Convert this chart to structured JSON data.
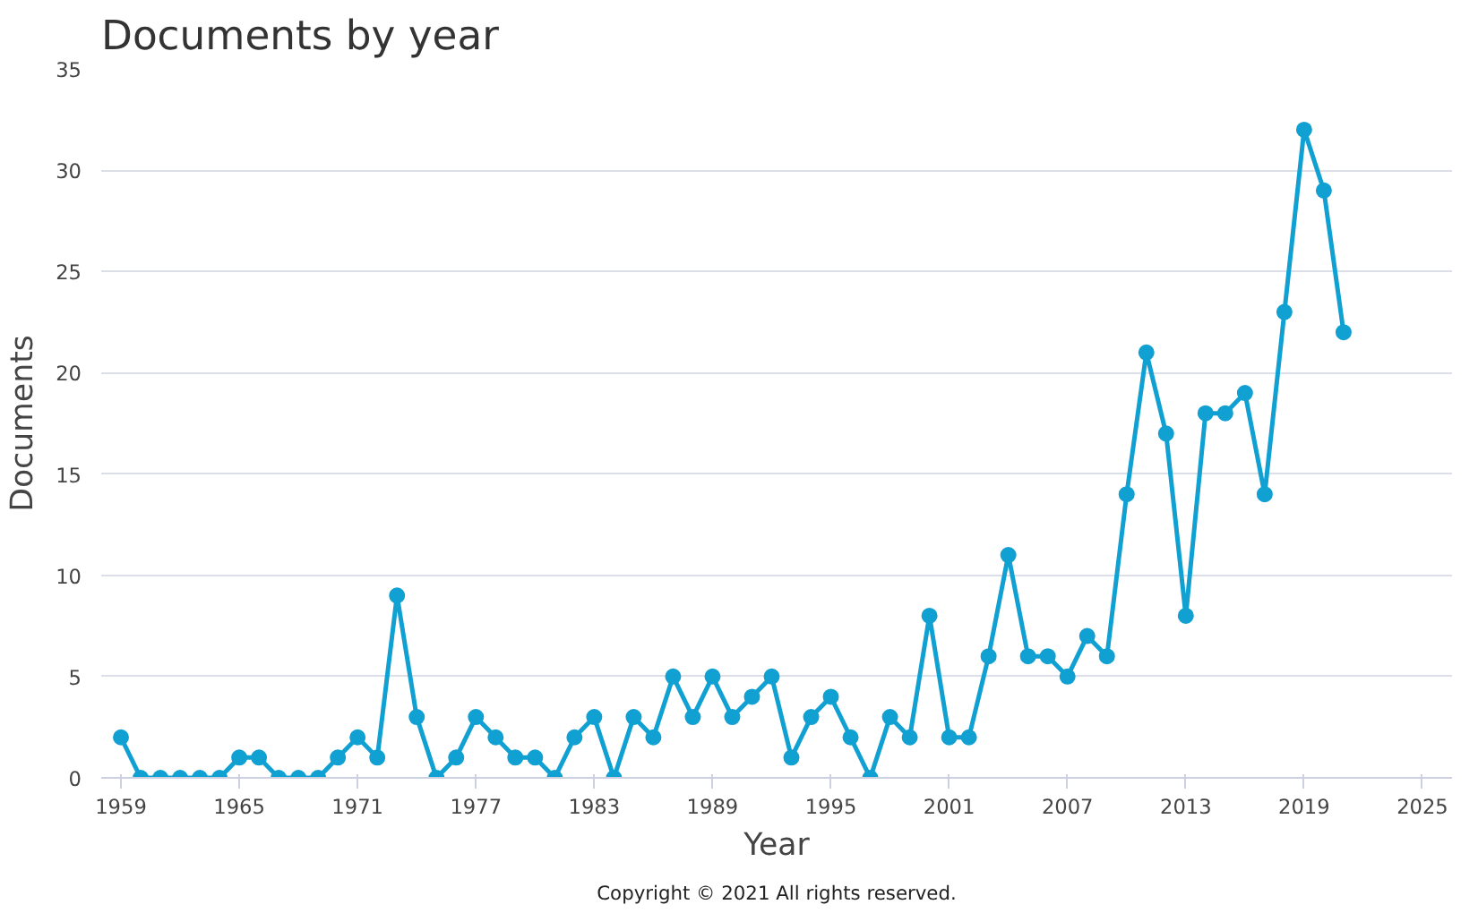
{
  "chart_data": {
    "type": "line",
    "title": "Documents by year",
    "xlabel": "Year",
    "ylabel": "Documents",
    "x": [
      1959,
      1960,
      1961,
      1962,
      1963,
      1964,
      1965,
      1966,
      1967,
      1968,
      1969,
      1970,
      1971,
      1972,
      1973,
      1974,
      1975,
      1976,
      1977,
      1978,
      1979,
      1980,
      1981,
      1982,
      1983,
      1984,
      1985,
      1986,
      1987,
      1988,
      1989,
      1990,
      1991,
      1992,
      1993,
      1994,
      1995,
      1996,
      1997,
      1998,
      1999,
      2000,
      2001,
      2002,
      2003,
      2004,
      2005,
      2006,
      2007,
      2008,
      2009,
      2010,
      2011,
      2012,
      2013,
      2014,
      2015,
      2016,
      2017,
      2018,
      2019,
      2020,
      2021
    ],
    "series": [
      {
        "color": "#11a0d2",
        "values": [
          2,
          0,
          0,
          0,
          0,
          0,
          1,
          1,
          0,
          0,
          0,
          1,
          2,
          1,
          9,
          3,
          0,
          1,
          3,
          2,
          1,
          1,
          0,
          2,
          3,
          0,
          3,
          2,
          5,
          3,
          5,
          3,
          4,
          5,
          1,
          3,
          4,
          2,
          0,
          3,
          2,
          8,
          2,
          2,
          6,
          11,
          6,
          6,
          5,
          7,
          6,
          14,
          21,
          17,
          8,
          18,
          18,
          19,
          14,
          23,
          32,
          29,
          22
        ]
      }
    ],
    "xlim": [
      1958,
      2026.5
    ],
    "ylim": [
      0,
      35
    ],
    "xticks": [
      1959,
      1965,
      1971,
      1977,
      1983,
      1989,
      1995,
      2001,
      2007,
      2013,
      2019,
      2025
    ],
    "yticks": [
      0,
      5,
      10,
      15,
      20,
      25,
      30,
      35
    ],
    "grid": "y",
    "marker": "circle",
    "line_style": "solid",
    "annotations": [
      "Copyright © 2021 All rights reserved."
    ]
  }
}
